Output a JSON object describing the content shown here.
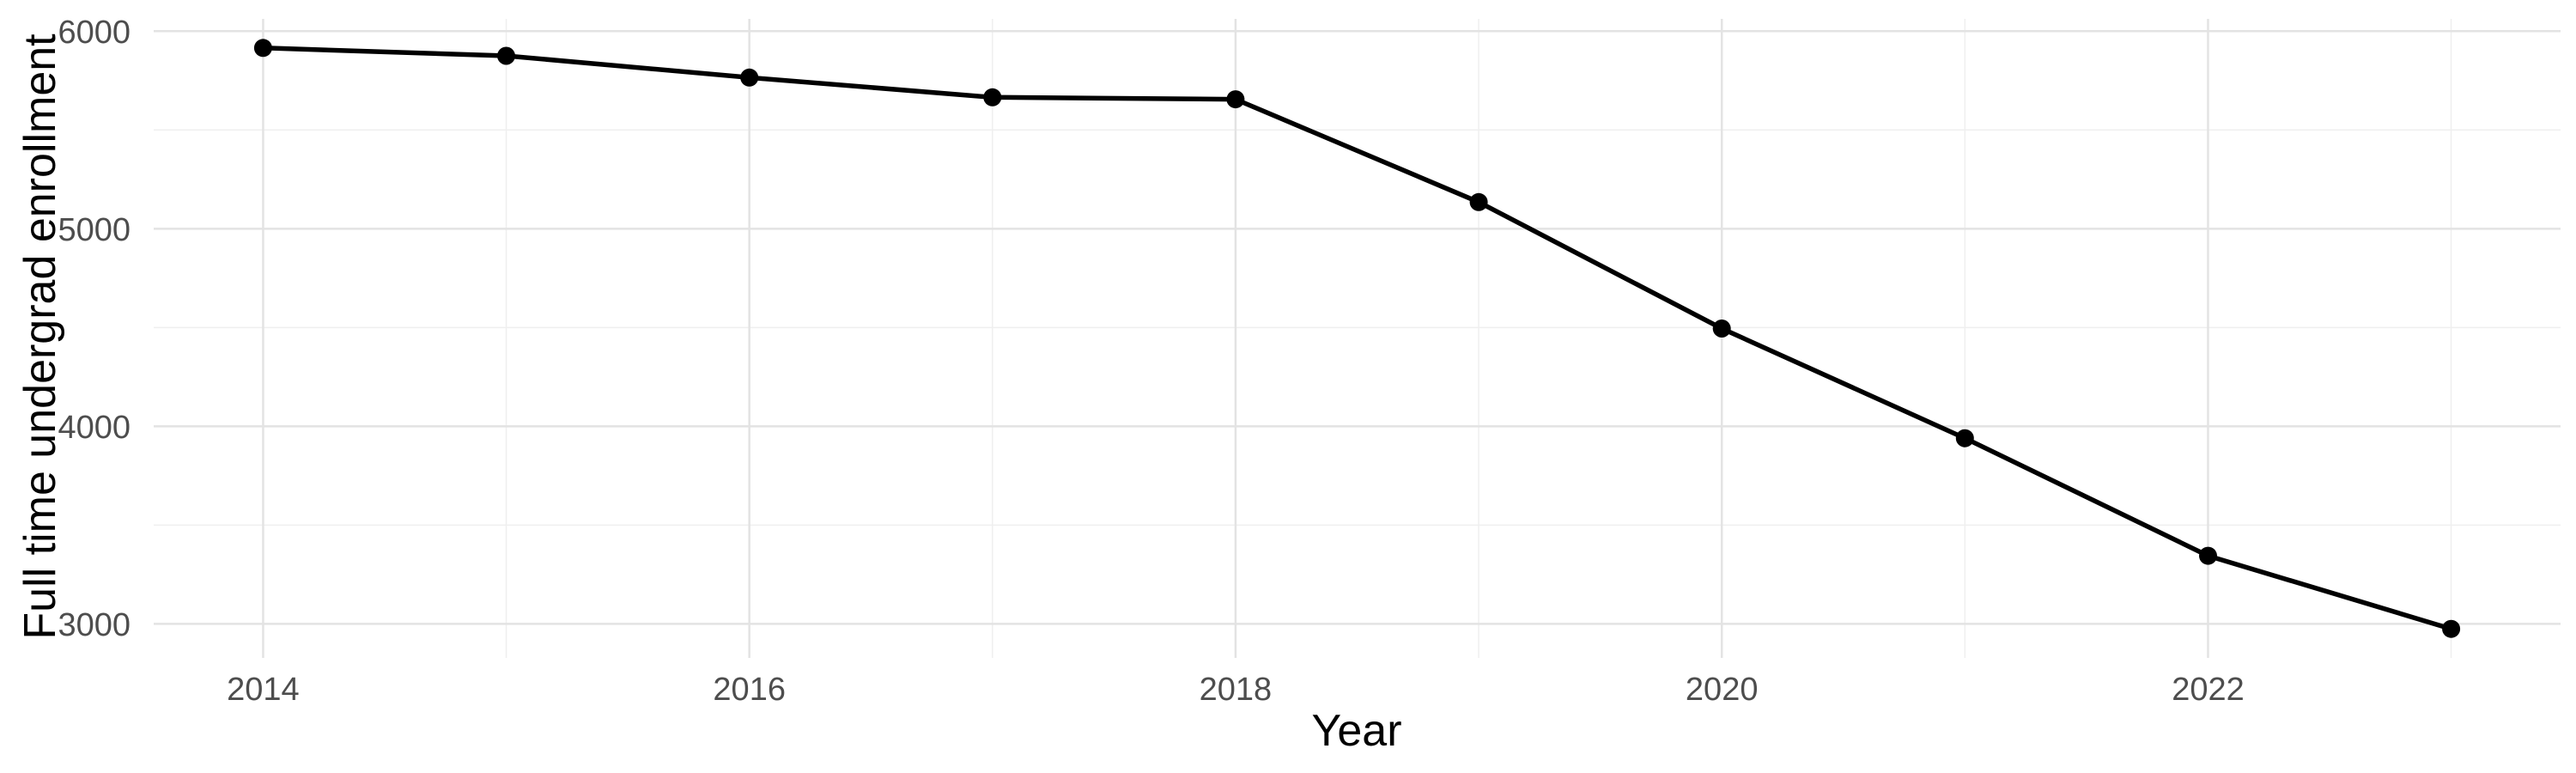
{
  "chart_data": {
    "type": "line",
    "title": "",
    "xlabel": "Year",
    "ylabel": "Full time undergrad enrollment",
    "x": [
      2014,
      2015,
      2016,
      2017,
      2018,
      2019,
      2020,
      2021,
      2022,
      2023
    ],
    "series": [
      {
        "name": "Full time undergrad enrollment",
        "values": [
          5915,
          5875,
          5765,
          5665,
          5655,
          5135,
          4495,
          3940,
          3345,
          2975
        ]
      }
    ],
    "xlim": [
      2013.55,
      2023.45
    ],
    "ylim": [
      2828,
      6062
    ],
    "x_ticks": [
      2014,
      2016,
      2018,
      2020,
      2022
    ],
    "x_minor_gridlines": [
      2015,
      2017,
      2019,
      2021,
      2023
    ],
    "y_ticks": [
      3000,
      4000,
      5000,
      6000
    ],
    "y_minor_gridlines": [
      3500,
      4500,
      5500
    ],
    "grid": "on",
    "legend_position": "none",
    "colors": {
      "line": "#000000",
      "point": "#000000",
      "major_grid": "#e3e3e3",
      "minor_grid": "#efefef",
      "tick_label": "#4d4d4d",
      "axis_title": "#000000",
      "background": "#ffffff"
    }
  }
}
